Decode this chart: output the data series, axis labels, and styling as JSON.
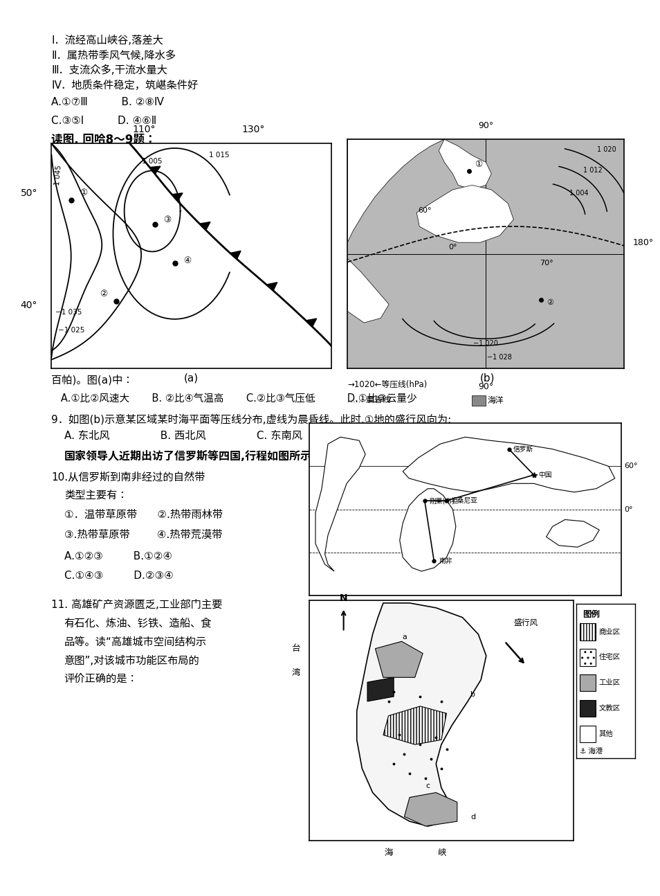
{
  "bg_color": "#ffffff",
  "text_color": "#000000",
  "map_a_labels": {
    "110deg": "110°",
    "130deg": "130°",
    "50deg": "50°",
    "40deg": "40°"
  },
  "map_b_labels": {
    "90deg_top": "90°",
    "180deg": "180°",
    "90deg_bot": "90°",
    "60deg": "60°",
    "0deg": "0°",
    "70deg": "70°"
  }
}
